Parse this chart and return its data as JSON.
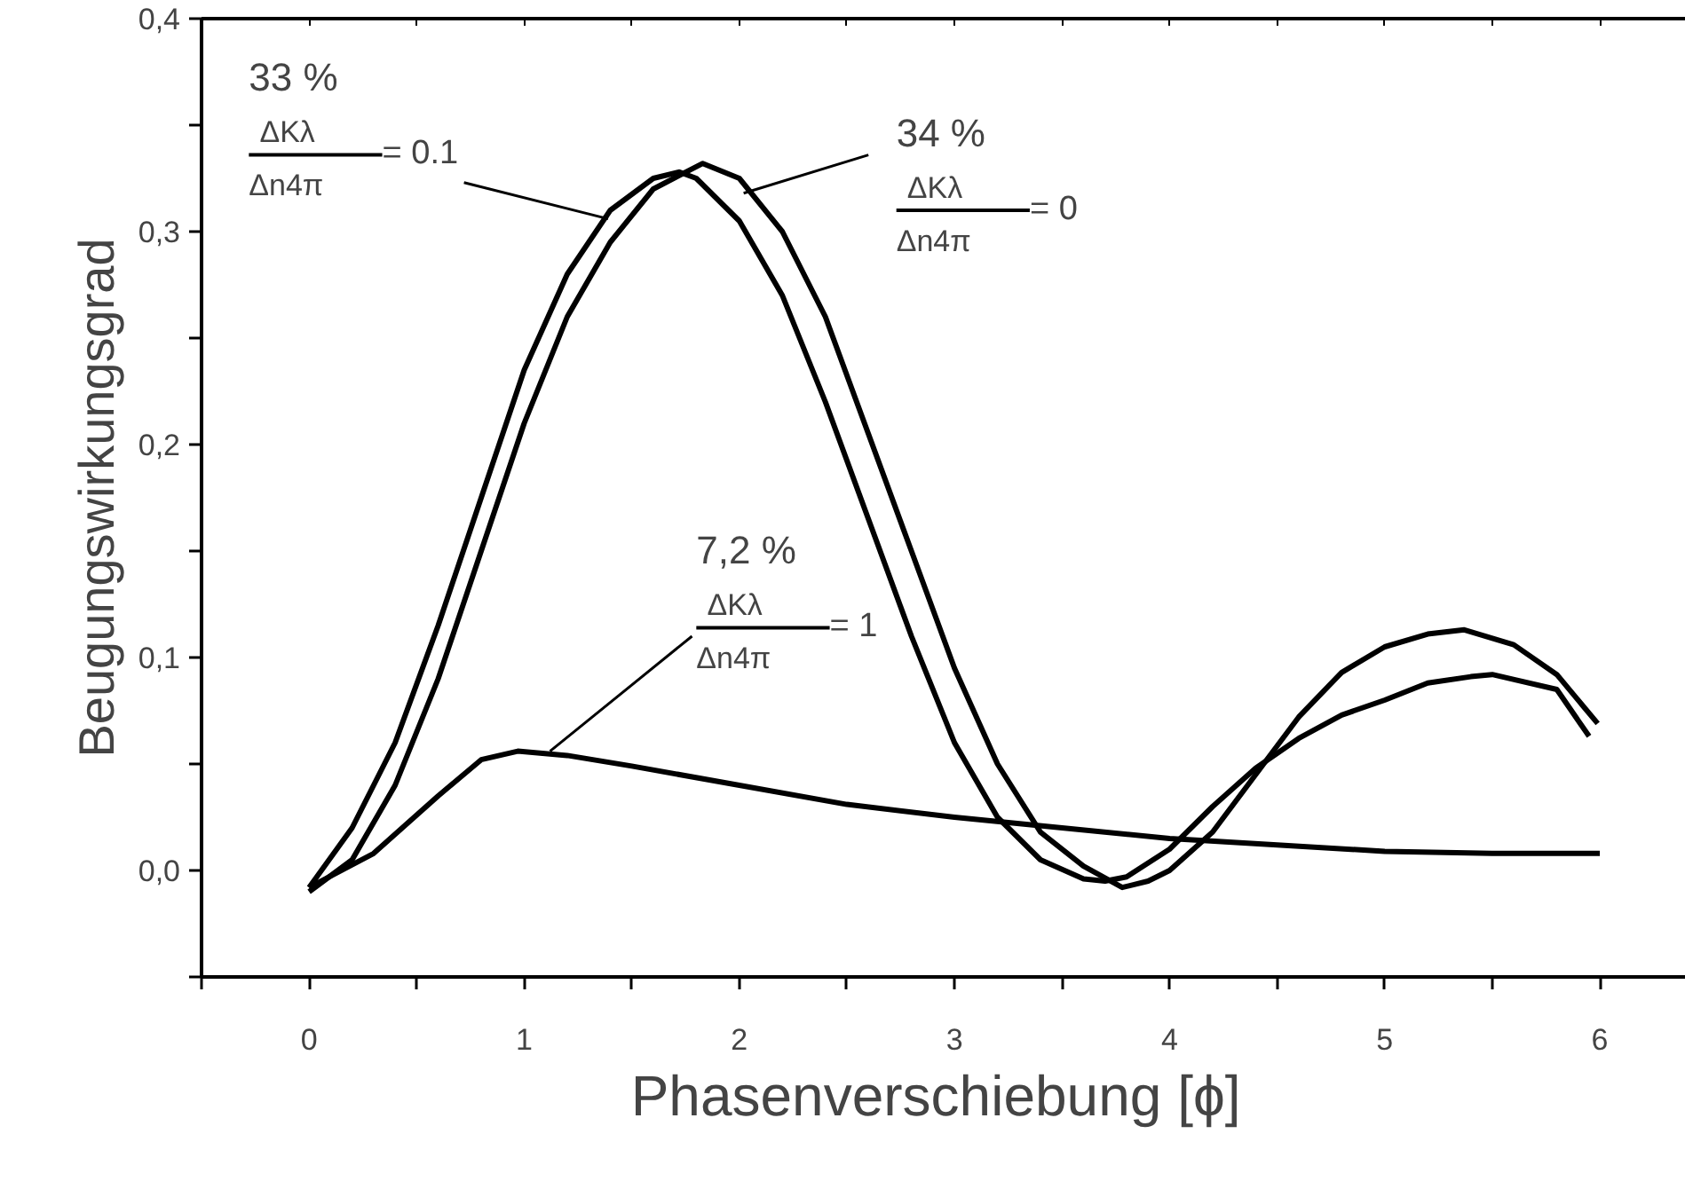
{
  "chart_data": {
    "type": "line",
    "xlabel": "Phasenverschiebung  [ϕ]",
    "ylabel": "Beugungswirkungsgrad",
    "xlim": [
      -0.5,
      6.4
    ],
    "ylim": [
      -0.05,
      0.4
    ],
    "xticks": [
      {
        "value": -0.5,
        "label": null
      },
      0,
      {
        "value": 0.5,
        "label": null
      },
      1,
      {
        "value": 1.5,
        "label": null
      },
      2,
      {
        "value": 2.5,
        "label": null
      },
      3,
      {
        "value": 3.5,
        "label": null
      },
      4,
      {
        "value": 4.5,
        "label": null
      },
      5,
      {
        "value": 5.5,
        "label": null
      },
      6
    ],
    "yticks": [
      {
        "value": -0.05,
        "label": null
      },
      {
        "value": 0,
        "label": "0,0"
      },
      {
        "value": 0.05,
        "label": null
      },
      {
        "value": 0.1,
        "label": "0,1"
      },
      {
        "value": 0.15,
        "label": null
      },
      {
        "value": 0.2,
        "label": "0,2"
      },
      {
        "value": 0.25,
        "label": null
      },
      {
        "value": 0.3,
        "label": "0,3"
      },
      {
        "value": 0.35,
        "label": null
      },
      {
        "value": 0.4,
        "label": "0,4"
      }
    ],
    "grid": false,
    "marker": "none",
    "line_style": "solid",
    "series": [
      {
        "color": "#000000",
        "x": [
          0,
          0.2,
          0.4,
          0.6,
          0.8,
          1.0,
          1.2,
          1.4,
          1.6,
          1.72,
          1.8,
          2.0,
          2.2,
          2.4,
          2.6,
          2.8,
          3.0,
          3.2,
          3.4,
          3.6,
          3.7,
          3.8,
          4.0,
          4.2,
          4.4,
          4.6,
          4.8,
          5.0,
          5.2,
          5.4,
          5.5,
          5.8,
          5.95
        ],
        "values": [
          -0.008,
          0.02,
          0.06,
          0.115,
          0.175,
          0.235,
          0.28,
          0.31,
          0.325,
          0.328,
          0.325,
          0.305,
          0.27,
          0.22,
          0.165,
          0.11,
          0.06,
          0.025,
          0.005,
          -0.004,
          -0.005,
          -0.003,
          0.01,
          0.03,
          0.048,
          0.062,
          0.073,
          0.08,
          0.088,
          0.091,
          0.092,
          0.085,
          0.063
        ]
      },
      {
        "color": "#000000",
        "x": [
          0,
          0.2,
          0.4,
          0.6,
          0.8,
          1.0,
          1.2,
          1.4,
          1.6,
          1.83,
          2.0,
          2.2,
          2.4,
          2.6,
          2.8,
          3.0,
          3.2,
          3.4,
          3.6,
          3.78,
          3.9,
          4.0,
          4.2,
          4.4,
          4.6,
          4.8,
          5.0,
          5.2,
          5.37,
          5.6,
          5.8,
          5.99
        ],
        "values": [
          -0.01,
          0.005,
          0.04,
          0.09,
          0.15,
          0.21,
          0.26,
          0.295,
          0.32,
          0.332,
          0.325,
          0.3,
          0.26,
          0.205,
          0.15,
          0.095,
          0.05,
          0.018,
          0.002,
          -0.008,
          -0.005,
          0.0,
          0.018,
          0.045,
          0.072,
          0.093,
          0.105,
          0.111,
          0.113,
          0.106,
          0.092,
          0.069
        ]
      },
      {
        "color": "#000000",
        "x": [
          0,
          0.3,
          0.6,
          0.8,
          0.97,
          1.2,
          1.5,
          2.0,
          2.5,
          3.0,
          3.5,
          4.0,
          4.5,
          5.0,
          5.5,
          6.0
        ],
        "values": [
          -0.008,
          0.008,
          0.035,
          0.052,
          0.056,
          0.054,
          0.049,
          0.04,
          0.031,
          0.025,
          0.02,
          0.015,
          0.012,
          0.009,
          0.008,
          0.008
        ]
      }
    ],
    "annotations": [
      "33 %",
      "ΔKλ",
      "Δn4π",
      {
        "text": "= 0.1",
        "x": 1.39,
        "y": 0.306
      },
      {
        "text": "34 %",
        "x": 2.02,
        "y": 0.318
      },
      "ΔKλ",
      "Δn4π",
      "= 0",
      "7,2 %",
      {
        "text": "ΔKλ",
        "x": 1.12,
        "y": 0.056
      },
      "Δn4π",
      "= 1"
    ]
  }
}
